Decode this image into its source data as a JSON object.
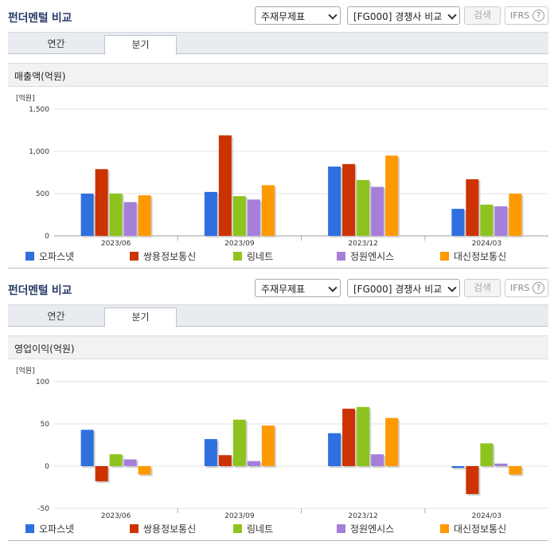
{
  "panels": [
    {
      "title": "펀더멘털 비교",
      "select1": "주재무제표",
      "select2": "[FG000] 경쟁사 비교",
      "search_label": "검색",
      "ifrs_label": "IFRS",
      "help_icon": "?",
      "tabs": [
        "연간",
        "분기"
      ],
      "active_tab": "분기",
      "chart_title": "매출액(억원)"
    },
    {
      "title": "펀더멘털 비교",
      "select1": "주재무제표",
      "select2": "[FG000] 경쟁사 비교",
      "search_label": "검색",
      "ifrs_label": "IFRS",
      "help_icon": "?",
      "tabs": [
        "연간",
        "분기"
      ],
      "active_tab": "분기",
      "chart_title": "영업이익(억원)"
    }
  ],
  "chart_data": [
    {
      "type": "bar",
      "title": "매출액(억원)",
      "unit_label": "[억원]",
      "categories": [
        "2023/06",
        "2023/09",
        "2023/12",
        "2024/03"
      ],
      "ylim": [
        0,
        1500
      ],
      "yticks": [
        0,
        500,
        1000,
        1500
      ],
      "ytick_labels": [
        "0",
        "500",
        "1,000",
        "1,500"
      ],
      "grid": true,
      "legend": "bottom",
      "series": [
        {
          "name": "오파스넷",
          "color": "#2f6fde",
          "values": [
            500,
            520,
            820,
            320
          ]
        },
        {
          "name": "쌍용정보통신",
          "color": "#cc3300",
          "values": [
            790,
            1190,
            850,
            670
          ]
        },
        {
          "name": "링네트",
          "color": "#8ec31f",
          "values": [
            500,
            470,
            660,
            370
          ]
        },
        {
          "name": "정원엔시스",
          "color": "#a57fd9",
          "values": [
            400,
            430,
            580,
            350
          ]
        },
        {
          "name": "대신정보통신",
          "color": "#ff9900",
          "values": [
            480,
            600,
            950,
            500
          ]
        }
      ]
    },
    {
      "type": "bar",
      "title": "영업이익(억원)",
      "unit_label": "[억원]",
      "categories": [
        "2023/06",
        "2023/09",
        "2023/12",
        "2024/03"
      ],
      "ylim": [
        -50,
        100
      ],
      "yticks": [
        -50,
        0,
        50,
        100
      ],
      "ytick_labels": [
        "-50",
        "0",
        "50",
        "100"
      ],
      "grid": true,
      "legend": "bottom",
      "series": [
        {
          "name": "오파스넷",
          "color": "#2f6fde",
          "values": [
            43,
            32,
            39,
            -2
          ]
        },
        {
          "name": "쌍용정보통신",
          "color": "#cc3300",
          "values": [
            -18,
            13,
            68,
            -33
          ]
        },
        {
          "name": "링네트",
          "color": "#8ec31f",
          "values": [
            14,
            55,
            70,
            27
          ]
        },
        {
          "name": "정원엔시스",
          "color": "#a57fd9",
          "values": [
            8,
            6,
            14,
            3
          ]
        },
        {
          "name": "대신정보통신",
          "color": "#ff9900",
          "values": [
            -10,
            48,
            57,
            -10
          ]
        }
      ]
    }
  ]
}
